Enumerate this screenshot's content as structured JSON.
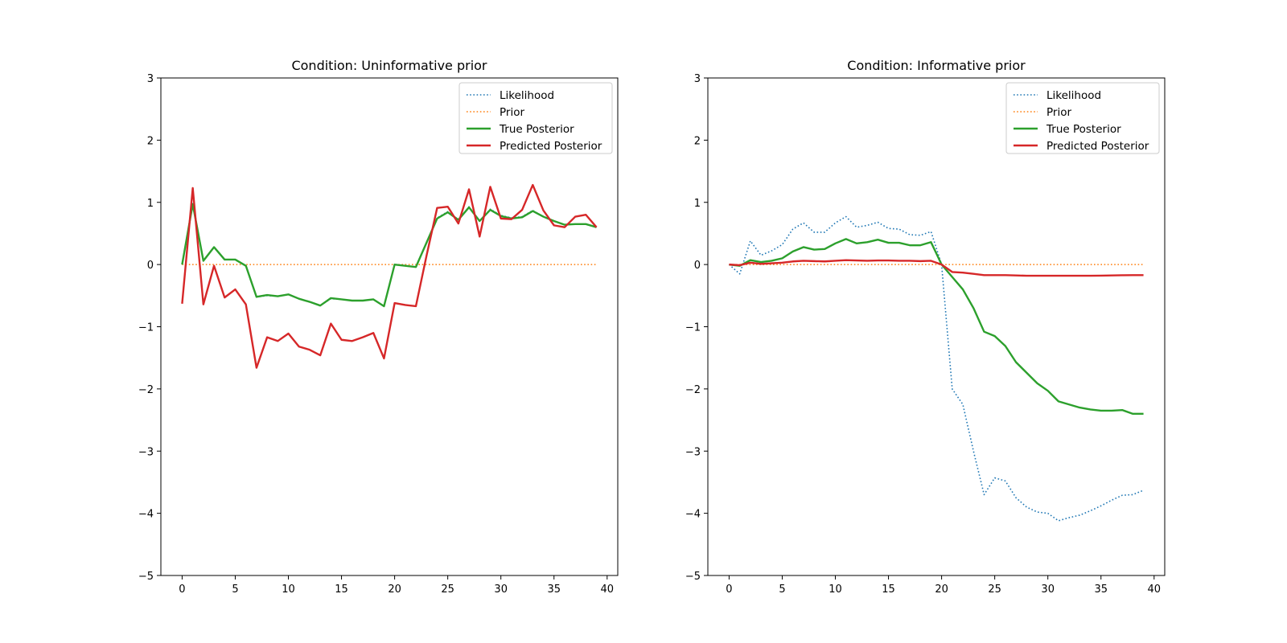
{
  "chart_data": [
    {
      "type": "line",
      "title": "Condition: Uninformative prior",
      "xlabel": "",
      "ylabel": "",
      "xlim": [
        -2,
        41
      ],
      "ylim": [
        -5,
        3
      ],
      "xticks": [
        0,
        5,
        10,
        15,
        20,
        25,
        30,
        35,
        40
      ],
      "yticks": [
        3,
        2,
        1,
        0,
        -1,
        -2,
        -3,
        -4,
        -5
      ],
      "grid": false,
      "legend_position": "upper-right",
      "x": [
        0,
        1,
        2,
        3,
        4,
        5,
        6,
        7,
        8,
        9,
        10,
        11,
        12,
        13,
        14,
        15,
        16,
        17,
        18,
        19,
        20,
        21,
        22,
        23,
        24,
        25,
        26,
        27,
        28,
        29,
        30,
        31,
        32,
        33,
        34,
        35,
        36,
        37,
        38,
        39
      ],
      "series": [
        {
          "name": "Likelihood",
          "style": "dotted",
          "color": "#1f77b4",
          "values": [
            0.0,
            0.98,
            0.06,
            0.28,
            0.08,
            0.08,
            -0.02,
            -0.52,
            -0.5,
            -0.51,
            -0.48,
            -0.55,
            -0.6,
            -0.66,
            -0.55,
            -0.56,
            -0.58,
            -0.58,
            -0.56,
            -0.67,
            0.0,
            -0.02,
            -0.04,
            0.35,
            0.75,
            0.85,
            0.72,
            0.93,
            0.7,
            0.89,
            0.79,
            0.75,
            0.77,
            0.87,
            0.77,
            0.7,
            0.64,
            0.65,
            0.65,
            0.6
          ]
        },
        {
          "name": "Prior",
          "style": "dotted",
          "color": "#ff7f0e",
          "values": [
            0,
            0,
            0,
            0,
            0,
            0,
            0,
            0,
            0,
            0,
            0,
            0,
            0,
            0,
            0,
            0,
            0,
            0,
            0,
            0,
            0,
            0,
            0,
            0,
            0,
            0,
            0,
            0,
            0,
            0,
            0,
            0,
            0,
            0,
            0,
            0,
            0,
            0,
            0,
            0
          ]
        },
        {
          "name": "True Posterior",
          "style": "solid",
          "color": "#2ca02c",
          "values": [
            0.0,
            0.97,
            0.06,
            0.28,
            0.08,
            0.08,
            -0.02,
            -0.52,
            -0.49,
            -0.51,
            -0.48,
            -0.55,
            -0.6,
            -0.66,
            -0.54,
            -0.56,
            -0.58,
            -0.58,
            -0.56,
            -0.67,
            0.0,
            -0.02,
            -0.04,
            0.35,
            0.74,
            0.84,
            0.72,
            0.92,
            0.7,
            0.88,
            0.78,
            0.74,
            0.76,
            0.86,
            0.77,
            0.7,
            0.64,
            0.65,
            0.65,
            0.6
          ]
        },
        {
          "name": "Predicted Posterior",
          "style": "solid",
          "color": "#d62728",
          "values": [
            -0.63,
            1.23,
            -0.64,
            -0.02,
            -0.53,
            -0.4,
            -0.64,
            -1.66,
            -1.17,
            -1.23,
            -1.11,
            -1.32,
            -1.37,
            -1.46,
            -0.95,
            -1.21,
            -1.23,
            -1.17,
            -1.1,
            -1.51,
            -0.62,
            -0.65,
            -0.67,
            0.14,
            0.91,
            0.93,
            0.66,
            1.21,
            0.45,
            1.25,
            0.74,
            0.73,
            0.88,
            1.28,
            0.87,
            0.63,
            0.6,
            0.77,
            0.8,
            0.6
          ]
        }
      ]
    },
    {
      "type": "line",
      "title": "Condition: Informative prior",
      "xlabel": "",
      "ylabel": "",
      "xlim": [
        -2,
        41
      ],
      "ylim": [
        -5,
        3
      ],
      "xticks": [
        0,
        5,
        10,
        15,
        20,
        25,
        30,
        35,
        40
      ],
      "yticks": [
        3,
        2,
        1,
        0,
        -1,
        -2,
        -3,
        -4,
        -5
      ],
      "grid": false,
      "legend_position": "upper-right",
      "x": [
        0,
        1,
        2,
        3,
        4,
        5,
        6,
        7,
        8,
        9,
        10,
        11,
        12,
        13,
        14,
        15,
        16,
        17,
        18,
        19,
        20,
        21,
        22,
        23,
        24,
        25,
        26,
        27,
        28,
        29,
        30,
        31,
        32,
        33,
        34,
        35,
        36,
        37,
        38,
        39
      ],
      "series": [
        {
          "name": "Likelihood",
          "style": "dotted",
          "color": "#1f77b4",
          "values": [
            0.0,
            -0.15,
            0.38,
            0.15,
            0.22,
            0.32,
            0.57,
            0.67,
            0.52,
            0.52,
            0.67,
            0.77,
            0.6,
            0.63,
            0.68,
            0.58,
            0.57,
            0.48,
            0.47,
            0.53,
            0.0,
            -2.0,
            -2.25,
            -3.0,
            -3.7,
            -3.43,
            -3.48,
            -3.75,
            -3.9,
            -3.98,
            -4.0,
            -4.12,
            -4.07,
            -4.03,
            -3.96,
            -3.88,
            -3.79,
            -3.71,
            -3.7,
            -3.63
          ]
        },
        {
          "name": "Prior",
          "style": "dotted",
          "color": "#ff7f0e",
          "values": [
            0,
            0,
            0,
            0,
            0,
            0,
            0,
            0,
            0,
            0,
            0,
            0,
            0,
            0,
            0,
            0,
            0,
            0,
            0,
            0,
            0,
            0,
            0,
            0,
            0,
            0,
            0,
            0,
            0,
            0,
            0,
            0,
            0,
            0,
            0,
            0,
            0,
            0,
            0,
            0
          ]
        },
        {
          "name": "True Posterior",
          "style": "solid",
          "color": "#2ca02c",
          "values": [
            0.0,
            -0.02,
            0.07,
            0.04,
            0.06,
            0.1,
            0.21,
            0.28,
            0.24,
            0.25,
            0.34,
            0.41,
            0.34,
            0.36,
            0.4,
            0.35,
            0.35,
            0.31,
            0.31,
            0.36,
            0.0,
            -0.2,
            -0.4,
            -0.7,
            -1.08,
            -1.15,
            -1.31,
            -1.57,
            -1.74,
            -1.91,
            -2.03,
            -2.2,
            -2.25,
            -2.3,
            -2.33,
            -2.35,
            -2.35,
            -2.34,
            -2.4,
            -2.4
          ]
        },
        {
          "name": "Predicted Posterior",
          "style": "solid",
          "color": "#d62728",
          "values": [
            0.0,
            -0.01,
            0.03,
            0.01,
            0.02,
            0.03,
            0.05,
            0.06,
            0.055,
            0.05,
            0.06,
            0.07,
            0.065,
            0.06,
            0.065,
            0.065,
            0.06,
            0.06,
            0.055,
            0.06,
            0.0,
            -0.12,
            -0.13,
            -0.15,
            -0.17,
            -0.17,
            -0.17,
            -0.175,
            -0.18,
            -0.18,
            -0.18,
            -0.18,
            -0.18,
            -0.18,
            -0.18,
            -0.178,
            -0.175,
            -0.172,
            -0.17,
            -0.17
          ]
        }
      ]
    }
  ]
}
